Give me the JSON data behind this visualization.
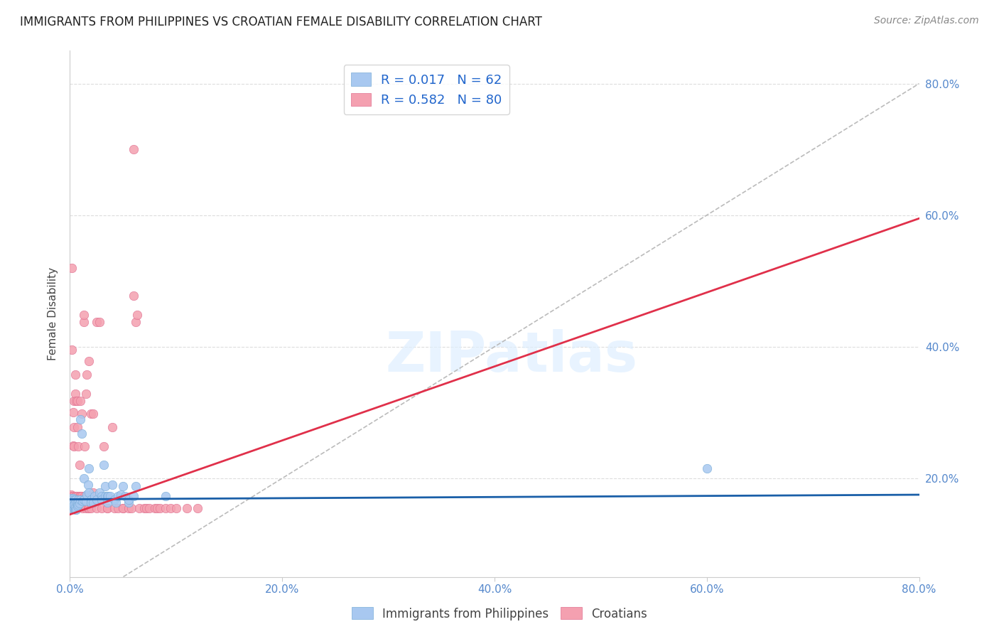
{
  "title": "IMMIGRANTS FROM PHILIPPINES VS CROATIAN FEMALE DISABILITY CORRELATION CHART",
  "source": "Source: ZipAtlas.com",
  "ylabel": "Female Disability",
  "x_min": 0.0,
  "x_max": 0.8,
  "y_min": 0.05,
  "y_max": 0.85,
  "series1_color": "#a8c8f0",
  "series1_edge": "#7aadd8",
  "series2_color": "#f4a0b0",
  "series2_edge": "#e07090",
  "series1_line_color": "#1a5fa8",
  "series2_line_color": "#e0304a",
  "diag_line_color": "#bbbbbb",
  "R1": 0.017,
  "N1": 62,
  "R2": 0.582,
  "N2": 80,
  "watermark": "ZIPatlas",
  "legend_label1": "Immigrants from Philippines",
  "legend_label2": "Croatians",
  "tick_color": "#5588cc",
  "grid_color": "#dddddd",
  "series1_points": [
    [
      0.001,
      0.17
    ],
    [
      0.001,
      0.162
    ],
    [
      0.001,
      0.158
    ],
    [
      0.002,
      0.168
    ],
    [
      0.002,
      0.16
    ],
    [
      0.002,
      0.155
    ],
    [
      0.003,
      0.17
    ],
    [
      0.003,
      0.162
    ],
    [
      0.003,
      0.165
    ],
    [
      0.003,
      0.158
    ],
    [
      0.004,
      0.168
    ],
    [
      0.004,
      0.155
    ],
    [
      0.004,
      0.16
    ],
    [
      0.005,
      0.168
    ],
    [
      0.005,
      0.152
    ],
    [
      0.005,
      0.157
    ],
    [
      0.006,
      0.163
    ],
    [
      0.006,
      0.152
    ],
    [
      0.007,
      0.163
    ],
    [
      0.007,
      0.158
    ],
    [
      0.008,
      0.16
    ],
    [
      0.008,
      0.168
    ],
    [
      0.009,
      0.162
    ],
    [
      0.01,
      0.168
    ],
    [
      0.01,
      0.29
    ],
    [
      0.011,
      0.268
    ],
    [
      0.012,
      0.165
    ],
    [
      0.013,
      0.168
    ],
    [
      0.013,
      0.2
    ],
    [
      0.015,
      0.165
    ],
    [
      0.016,
      0.175
    ],
    [
      0.017,
      0.19
    ],
    [
      0.018,
      0.215
    ],
    [
      0.018,
      0.178
    ],
    [
      0.02,
      0.168
    ],
    [
      0.02,
      0.163
    ],
    [
      0.022,
      0.163
    ],
    [
      0.023,
      0.173
    ],
    [
      0.025,
      0.168
    ],
    [
      0.028,
      0.178
    ],
    [
      0.03,
      0.173
    ],
    [
      0.03,
      0.168
    ],
    [
      0.032,
      0.22
    ],
    [
      0.033,
      0.188
    ],
    [
      0.033,
      0.173
    ],
    [
      0.035,
      0.173
    ],
    [
      0.035,
      0.163
    ],
    [
      0.036,
      0.173
    ],
    [
      0.038,
      0.173
    ],
    [
      0.04,
      0.19
    ],
    [
      0.042,
      0.168
    ],
    [
      0.043,
      0.163
    ],
    [
      0.045,
      0.173
    ],
    [
      0.048,
      0.175
    ],
    [
      0.05,
      0.188
    ],
    [
      0.052,
      0.173
    ],
    [
      0.055,
      0.163
    ],
    [
      0.055,
      0.168
    ],
    [
      0.06,
      0.173
    ],
    [
      0.062,
      0.188
    ],
    [
      0.09,
      0.173
    ],
    [
      0.6,
      0.215
    ]
  ],
  "series2_points": [
    [
      0.001,
      0.175
    ],
    [
      0.001,
      0.165
    ],
    [
      0.001,
      0.16
    ],
    [
      0.002,
      0.173
    ],
    [
      0.002,
      0.155
    ],
    [
      0.002,
      0.395
    ],
    [
      0.002,
      0.52
    ],
    [
      0.003,
      0.173
    ],
    [
      0.003,
      0.163
    ],
    [
      0.003,
      0.25
    ],
    [
      0.003,
      0.3
    ],
    [
      0.004,
      0.168
    ],
    [
      0.004,
      0.248
    ],
    [
      0.004,
      0.278
    ],
    [
      0.004,
      0.318
    ],
    [
      0.005,
      0.173
    ],
    [
      0.005,
      0.163
    ],
    [
      0.005,
      0.328
    ],
    [
      0.005,
      0.358
    ],
    [
      0.006,
      0.173
    ],
    [
      0.006,
      0.163
    ],
    [
      0.006,
      0.318
    ],
    [
      0.007,
      0.173
    ],
    [
      0.007,
      0.278
    ],
    [
      0.007,
      0.318
    ],
    [
      0.008,
      0.168
    ],
    [
      0.008,
      0.248
    ],
    [
      0.009,
      0.173
    ],
    [
      0.009,
      0.22
    ],
    [
      0.01,
      0.173
    ],
    [
      0.01,
      0.318
    ],
    [
      0.011,
      0.173
    ],
    [
      0.011,
      0.298
    ],
    [
      0.012,
      0.168
    ],
    [
      0.012,
      0.155
    ],
    [
      0.013,
      0.438
    ],
    [
      0.013,
      0.448
    ],
    [
      0.014,
      0.173
    ],
    [
      0.014,
      0.248
    ],
    [
      0.015,
      0.155
    ],
    [
      0.015,
      0.328
    ],
    [
      0.016,
      0.173
    ],
    [
      0.016,
      0.358
    ],
    [
      0.017,
      0.155
    ],
    [
      0.018,
      0.155
    ],
    [
      0.018,
      0.378
    ],
    [
      0.02,
      0.155
    ],
    [
      0.02,
      0.298
    ],
    [
      0.022,
      0.178
    ],
    [
      0.022,
      0.298
    ],
    [
      0.025,
      0.155
    ],
    [
      0.025,
      0.438
    ],
    [
      0.028,
      0.438
    ],
    [
      0.03,
      0.155
    ],
    [
      0.032,
      0.248
    ],
    [
      0.035,
      0.155
    ],
    [
      0.035,
      0.155
    ],
    [
      0.04,
      0.278
    ],
    [
      0.042,
      0.155
    ],
    [
      0.045,
      0.155
    ],
    [
      0.05,
      0.155
    ],
    [
      0.05,
      0.155
    ],
    [
      0.055,
      0.155
    ],
    [
      0.058,
      0.155
    ],
    [
      0.06,
      0.7
    ],
    [
      0.06,
      0.478
    ],
    [
      0.062,
      0.438
    ],
    [
      0.063,
      0.448
    ],
    [
      0.065,
      0.155
    ],
    [
      0.07,
      0.155
    ],
    [
      0.072,
      0.155
    ],
    [
      0.075,
      0.155
    ],
    [
      0.08,
      0.155
    ],
    [
      0.082,
      0.155
    ],
    [
      0.085,
      0.155
    ],
    [
      0.09,
      0.155
    ],
    [
      0.095,
      0.155
    ],
    [
      0.1,
      0.155
    ],
    [
      0.11,
      0.155
    ],
    [
      0.12,
      0.155
    ]
  ],
  "line1_x": [
    0.0,
    0.8
  ],
  "line1_y": [
    0.168,
    0.175
  ],
  "line2_x": [
    0.0,
    0.8
  ],
  "line2_y": [
    0.145,
    0.595
  ]
}
